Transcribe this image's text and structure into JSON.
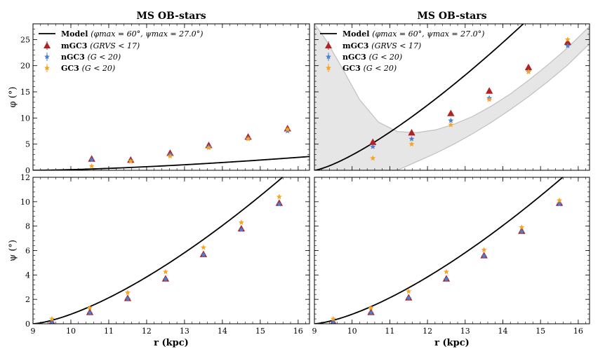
{
  "colors": {
    "mGC3": "#b22222",
    "nGC3": "#4a7fd4",
    "GC3": "#f5a623",
    "model": "#000000",
    "band_fill": "#e6e6e6",
    "band_edge": "#c0c0c0"
  },
  "chart_data": [
    {
      "id": "top-left",
      "type": "scatter",
      "title": "MS OB-stars",
      "xlabel": "",
      "ylabel": "φ (°)",
      "xlim": [
        9,
        16.3
      ],
      "ylim": [
        0,
        28
      ],
      "xticks": [
        9,
        10,
        11,
        12,
        13,
        14,
        15,
        16
      ],
      "xtick_labels": [
        "",
        "",
        "",
        "",
        "",
        "",
        "",
        ""
      ],
      "yticks": [
        0,
        5,
        10,
        15,
        20,
        25
      ],
      "ytick_labels": [
        "0",
        "5",
        "10",
        "15",
        "20",
        "25"
      ],
      "legend": {
        "placement": "top-left",
        "model_name": "Model",
        "model_params": "(φmax = 60°, ψmax = 27.0°)",
        "entries": [
          {
            "name": "mGC3",
            "cond": "(GRVS < 17)"
          },
          {
            "name": "nGC3",
            "cond": "(G < 20)"
          },
          {
            "name": "GC3",
            "cond": "(G < 20)"
          }
        ]
      },
      "model": {
        "a": 0.135,
        "b": 1.5,
        "x0": 9.05
      },
      "band": null,
      "series": [
        {
          "name": "mGC3",
          "x": [
            10.55,
            11.58,
            12.62,
            13.64,
            14.68,
            15.72
          ],
          "y": [
            2.2,
            2.0,
            3.3,
            4.8,
            6.4,
            8.0
          ]
        },
        {
          "name": "nGC3",
          "x": [
            10.55,
            11.58,
            12.62,
            13.64,
            14.68,
            15.72
          ],
          "y": [
            2.0,
            1.8,
            3.0,
            4.5,
            6.1,
            7.5
          ]
        },
        {
          "name": "GC3",
          "x": [
            10.55,
            11.58,
            12.62,
            13.64,
            14.68,
            15.72
          ],
          "y": [
            0.8,
            1.7,
            2.7,
            4.3,
            6.0,
            7.8
          ]
        }
      ]
    },
    {
      "id": "top-right",
      "type": "scatter",
      "title": "MS OB-stars",
      "xlabel": "",
      "ylabel": "",
      "xlim": [
        9,
        16.3
      ],
      "ylim": [
        0,
        28
      ],
      "xticks": [
        9,
        10,
        11,
        12,
        13,
        14,
        15,
        16
      ],
      "xtick_labels": [
        "",
        "",
        "",
        "",
        "",
        "",
        "",
        ""
      ],
      "yticks": [
        0,
        5,
        10,
        15,
        20,
        25
      ],
      "ytick_labels": [
        "",
        "",
        "",
        "",
        "",
        ""
      ],
      "legend": {
        "placement": "top-left",
        "model_name": "Model",
        "model_params": "(φmax = 60°, ψmax = 27.0°)",
        "entries": [
          {
            "name": "mGC3",
            "cond": "(GRVS < 17)"
          },
          {
            "name": "nGC3",
            "cond": "(G < 20)"
          },
          {
            "name": "GC3",
            "cond": "(G < 20)"
          }
        ]
      },
      "model": {
        "a": 2.92,
        "b": 1.32,
        "x0": 9.0
      },
      "band": {
        "upper": [
          [
            9.0,
            28
          ],
          [
            9.3,
            25
          ],
          [
            9.7,
            20
          ],
          [
            10.2,
            13.5
          ],
          [
            10.7,
            9.2
          ],
          [
            11.2,
            7.4
          ],
          [
            11.7,
            7.2
          ],
          [
            12.2,
            7.7
          ],
          [
            12.7,
            8.8
          ],
          [
            13.2,
            10.3
          ],
          [
            13.7,
            12.3
          ],
          [
            14.2,
            14.6
          ],
          [
            14.7,
            17.3
          ],
          [
            15.2,
            20.2
          ],
          [
            15.7,
            23.3
          ],
          [
            16.3,
            27.5
          ]
        ],
        "lower": [
          [
            11.2,
            0
          ],
          [
            11.7,
            1.6
          ],
          [
            12.2,
            3.2
          ],
          [
            12.7,
            5.0
          ],
          [
            13.2,
            7.0
          ],
          [
            13.7,
            9.2
          ],
          [
            14.2,
            11.6
          ],
          [
            14.7,
            14.2
          ],
          [
            15.2,
            17.0
          ],
          [
            15.7,
            20.0
          ],
          [
            16.3,
            24.2
          ]
        ]
      },
      "series": [
        {
          "name": "mGC3",
          "x": [
            10.55,
            11.58,
            12.62,
            13.64,
            14.68,
            15.72
          ],
          "y": [
            5.4,
            7.2,
            10.9,
            15.2,
            19.7,
            24.5
          ]
        },
        {
          "name": "nGC3",
          "x": [
            10.55,
            11.58,
            12.62,
            13.64,
            14.68,
            15.72
          ],
          "y": [
            4.5,
            6.0,
            9.5,
            13.8,
            18.9,
            23.8
          ]
        },
        {
          "name": "GC3",
          "x": [
            10.55,
            11.58,
            12.62,
            13.64,
            14.68,
            15.72
          ],
          "y": [
            2.3,
            5.0,
            8.7,
            13.5,
            18.8,
            25.0
          ]
        }
      ]
    },
    {
      "id": "bottom-left",
      "type": "scatter",
      "title": "",
      "xlabel": "r (kpc)",
      "ylabel": "ψ (°)",
      "xlim": [
        9,
        16.3
      ],
      "ylim": [
        0,
        12
      ],
      "xticks": [
        9,
        10,
        11,
        12,
        13,
        14,
        15,
        16
      ],
      "xtick_labels": [
        "9",
        "10",
        "11",
        "12",
        "13",
        "14",
        "15",
        "16"
      ],
      "yticks": [
        0,
        2,
        4,
        6,
        8,
        10,
        12
      ],
      "ytick_labels": [
        "0",
        "2",
        "4",
        "6",
        "8",
        "10",
        "12"
      ],
      "legend": null,
      "model": {
        "a": 0.78,
        "b": 1.45,
        "x0": 9.0
      },
      "band": null,
      "series": [
        {
          "name": "mGC3",
          "x": [
            9.5,
            10.5,
            11.5,
            12.5,
            13.5,
            14.5,
            15.5
          ],
          "y": [
            0.15,
            0.95,
            2.1,
            3.7,
            5.7,
            7.8,
            9.9
          ]
        },
        {
          "name": "nGC3",
          "x": [
            9.5,
            10.5,
            11.5,
            12.5,
            13.5,
            14.5,
            15.5
          ],
          "y": [
            0.1,
            0.9,
            2.05,
            3.65,
            5.65,
            7.7,
            9.8
          ]
        },
        {
          "name": "GC3",
          "x": [
            9.5,
            10.5,
            11.5,
            12.5,
            13.5,
            14.5,
            15.5
          ],
          "y": [
            0.4,
            1.3,
            2.55,
            4.25,
            6.25,
            8.3,
            10.4
          ]
        }
      ]
    },
    {
      "id": "bottom-right",
      "type": "scatter",
      "title": "",
      "xlabel": "r (kpc)",
      "ylabel": "",
      "xlim": [
        9,
        16.3
      ],
      "ylim": [
        0,
        12
      ],
      "xticks": [
        9,
        10,
        11,
        12,
        13,
        14,
        15,
        16
      ],
      "xtick_labels": [
        "9",
        "10",
        "11",
        "12",
        "13",
        "14",
        "15",
        "16"
      ],
      "yticks": [
        0,
        2,
        4,
        6,
        8,
        10,
        12
      ],
      "ytick_labels": [
        "",
        "",
        "",
        "",
        "",
        "",
        ""
      ],
      "legend": null,
      "model": {
        "a": 0.78,
        "b": 1.45,
        "x0": 9.0
      },
      "band": null,
      "series": [
        {
          "name": "mGC3",
          "x": [
            9.5,
            10.5,
            11.5,
            12.5,
            13.5,
            14.5,
            15.5
          ],
          "y": [
            0.15,
            0.95,
            2.15,
            3.7,
            5.6,
            7.6,
            9.9
          ]
        },
        {
          "name": "nGC3",
          "x": [
            9.5,
            10.5,
            11.5,
            12.5,
            13.5,
            14.5,
            15.5
          ],
          "y": [
            0.1,
            0.9,
            2.1,
            3.65,
            5.55,
            7.55,
            9.8
          ]
        },
        {
          "name": "GC3",
          "x": [
            9.5,
            10.5,
            11.5,
            12.5,
            13.5,
            14.5,
            15.5
          ],
          "y": [
            0.4,
            1.3,
            2.65,
            4.25,
            6.05,
            7.9,
            10.1
          ]
        }
      ]
    }
  ]
}
